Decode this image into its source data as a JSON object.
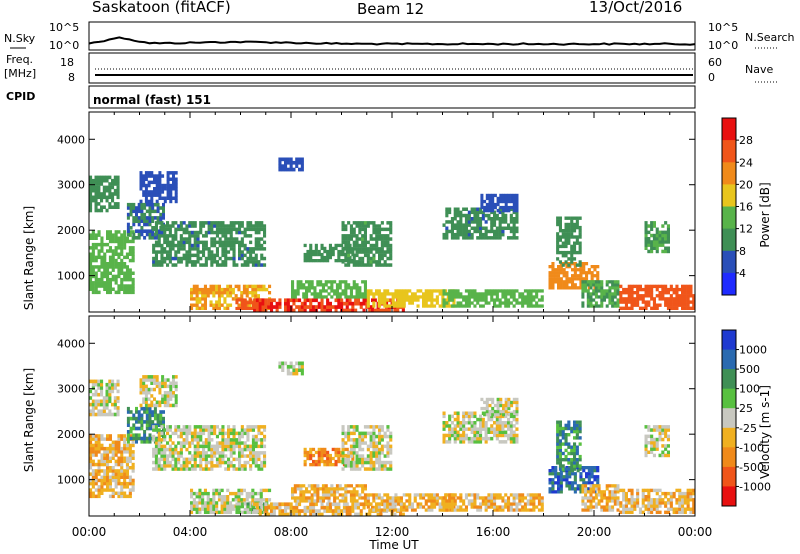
{
  "header": {
    "site": "Saskatoon (fitACF)",
    "beam": "Beam 12",
    "date": "13/Oct/2016"
  },
  "noise_panel": {
    "left_label": "N.Sky",
    "left_ticks": [
      "10^5",
      "10^0"
    ],
    "right_ticks": [
      "10^5",
      "10^0"
    ],
    "right_label": "N.Search"
  },
  "freq_panel": {
    "left_label_1": "Freq.",
    "left_label_2": "[MHz]",
    "left_ticks": [
      "18",
      "8"
    ],
    "right_ticks": [
      "60",
      "0"
    ],
    "right_label": "Nave"
  },
  "cpid_panel": {
    "label": "CPID",
    "mode": "normal (fast) 151"
  },
  "colors": {
    "background": "#ffffff",
    "power_scale": [
      "#1f2bff",
      "#2a4fb8",
      "#3f8f55",
      "#58b34a",
      "#e8c51d",
      "#f08a1a",
      "#f0551a",
      "#e81010"
    ],
    "velocity_scale": [
      "#e81010",
      "#f0551a",
      "#f08a1a",
      "#f0b020",
      "#c8c8c0",
      "#58c040",
      "#3f8f55",
      "#2a6ab0",
      "#1f3ad0"
    ]
  },
  "chart_data": [
    {
      "type": "heatmap",
      "name": "power",
      "ylabel": "Slant Range [km]",
      "yticks": [
        "1000",
        "2000",
        "3000",
        "4000"
      ],
      "ylim": [
        200,
        4600
      ],
      "xlim_hours": [
        0,
        24
      ],
      "colorbar_label": "Power [dB]",
      "colorbar_ticks": [
        "4",
        "8",
        "12",
        "16",
        "20",
        "24",
        "28"
      ],
      "colorbar_range": [
        0,
        32
      ],
      "regions": [
        {
          "t": [
            0.0,
            1.8
          ],
          "r": [
            600,
            2000
          ],
          "v": 14
        },
        {
          "t": [
            0.0,
            1.2
          ],
          "r": [
            2400,
            3200
          ],
          "v": 10
        },
        {
          "t": [
            1.5,
            3.0
          ],
          "r": [
            1800,
            2600
          ],
          "v": 8
        },
        {
          "t": [
            2.0,
            3.5
          ],
          "r": [
            2600,
            3300
          ],
          "v": 6
        },
        {
          "t": [
            2.5,
            7.0
          ],
          "r": [
            1200,
            2200
          ],
          "v": 9
        },
        {
          "t": [
            4.0,
            7.2
          ],
          "r": [
            250,
            800
          ],
          "v": 20
        },
        {
          "t": [
            5.8,
            7.0
          ],
          "r": [
            250,
            500
          ],
          "v": 26
        },
        {
          "t": [
            6.5,
            12.5
          ],
          "r": [
            200,
            500
          ],
          "v": 28
        },
        {
          "t": [
            8.0,
            11.0
          ],
          "r": [
            500,
            900
          ],
          "v": 14
        },
        {
          "t": [
            8.5,
            10.5
          ],
          "r": [
            1300,
            1700
          ],
          "v": 10
        },
        {
          "t": [
            10.0,
            12.0
          ],
          "r": [
            1200,
            2200
          ],
          "v": 11
        },
        {
          "t": [
            7.5,
            8.5
          ],
          "r": [
            3300,
            3600
          ],
          "v": 6
        },
        {
          "t": [
            11.0,
            14.5
          ],
          "r": [
            300,
            700
          ],
          "v": 18
        },
        {
          "t": [
            14.0,
            18.0
          ],
          "r": [
            300,
            700
          ],
          "v": 14
        },
        {
          "t": [
            14.0,
            17.0
          ],
          "r": [
            1800,
            2500
          ],
          "v": 9
        },
        {
          "t": [
            15.5,
            17.0
          ],
          "r": [
            2400,
            2800
          ],
          "v": 6
        },
        {
          "t": [
            18.2,
            20.2
          ],
          "r": [
            700,
            1300
          ],
          "v": 22
        },
        {
          "t": [
            18.5,
            19.5
          ],
          "r": [
            1200,
            2300
          ],
          "v": 10
        },
        {
          "t": [
            19.5,
            21.0
          ],
          "r": [
            300,
            900
          ],
          "v": 12
        },
        {
          "t": [
            21.0,
            24.0
          ],
          "r": [
            250,
            800
          ],
          "v": 26
        },
        {
          "t": [
            22.0,
            23.0
          ],
          "r": [
            1500,
            2200
          ],
          "v": 12
        }
      ]
    },
    {
      "type": "heatmap",
      "name": "velocity",
      "ylabel": "Slant Range [km]",
      "yticks": [
        "1000",
        "2000",
        "3000",
        "4000"
      ],
      "ylim": [
        200,
        4600
      ],
      "xlim_hours": [
        0,
        24
      ],
      "xticks": [
        "00:00",
        "04:00",
        "08:00",
        "12:00",
        "16:00",
        "20:00",
        "00:00"
      ],
      "xlabel": "Time UT",
      "colorbar_label": "Velocity [m s-1]",
      "colorbar_ticks": [
        "1000",
        "500",
        "100",
        "25",
        "-25",
        "-100",
        "-500",
        "-1000"
      ],
      "regions": [
        {
          "t": [
            0.0,
            1.8
          ],
          "r": [
            600,
            2000
          ],
          "v": 3
        },
        {
          "t": [
            0.0,
            1.2
          ],
          "r": [
            2400,
            3200
          ],
          "v": 4
        },
        {
          "t": [
            1.5,
            3.0
          ],
          "r": [
            1800,
            2600
          ],
          "v": 6
        },
        {
          "t": [
            2.0,
            3.5
          ],
          "r": [
            2600,
            3300
          ],
          "v": 4
        },
        {
          "t": [
            2.5,
            7.0
          ],
          "r": [
            1200,
            2200
          ],
          "v": 4
        },
        {
          "t": [
            4.0,
            7.2
          ],
          "r": [
            250,
            800
          ],
          "v": 4
        },
        {
          "t": [
            5.8,
            7.0
          ],
          "r": [
            250,
            500
          ],
          "v": 5
        },
        {
          "t": [
            6.5,
            12.5
          ],
          "r": [
            200,
            500
          ],
          "v": 3
        },
        {
          "t": [
            8.0,
            11.0
          ],
          "r": [
            500,
            900
          ],
          "v": 3
        },
        {
          "t": [
            8.5,
            10.5
          ],
          "r": [
            1300,
            1700
          ],
          "v": 2
        },
        {
          "t": [
            10.0,
            12.0
          ],
          "r": [
            1200,
            2200
          ],
          "v": 4
        },
        {
          "t": [
            7.5,
            8.5
          ],
          "r": [
            3300,
            3600
          ],
          "v": 4
        },
        {
          "t": [
            11.0,
            14.5
          ],
          "r": [
            300,
            700
          ],
          "v": 3
        },
        {
          "t": [
            14.0,
            18.0
          ],
          "r": [
            300,
            700
          ],
          "v": 3
        },
        {
          "t": [
            14.0,
            17.0
          ],
          "r": [
            1800,
            2500
          ],
          "v": 4
        },
        {
          "t": [
            15.5,
            17.0
          ],
          "r": [
            2400,
            2800
          ],
          "v": 4
        },
        {
          "t": [
            18.2,
            20.2
          ],
          "r": [
            700,
            1300
          ],
          "v": 7
        },
        {
          "t": [
            18.5,
            19.5
          ],
          "r": [
            1200,
            2300
          ],
          "v": 6
        },
        {
          "t": [
            19.5,
            21.0
          ],
          "r": [
            300,
            900
          ],
          "v": 3
        },
        {
          "t": [
            21.0,
            24.0
          ],
          "r": [
            250,
            800
          ],
          "v": 3
        },
        {
          "t": [
            22.0,
            23.0
          ],
          "r": [
            1500,
            2200
          ],
          "v": 4
        }
      ]
    }
  ]
}
